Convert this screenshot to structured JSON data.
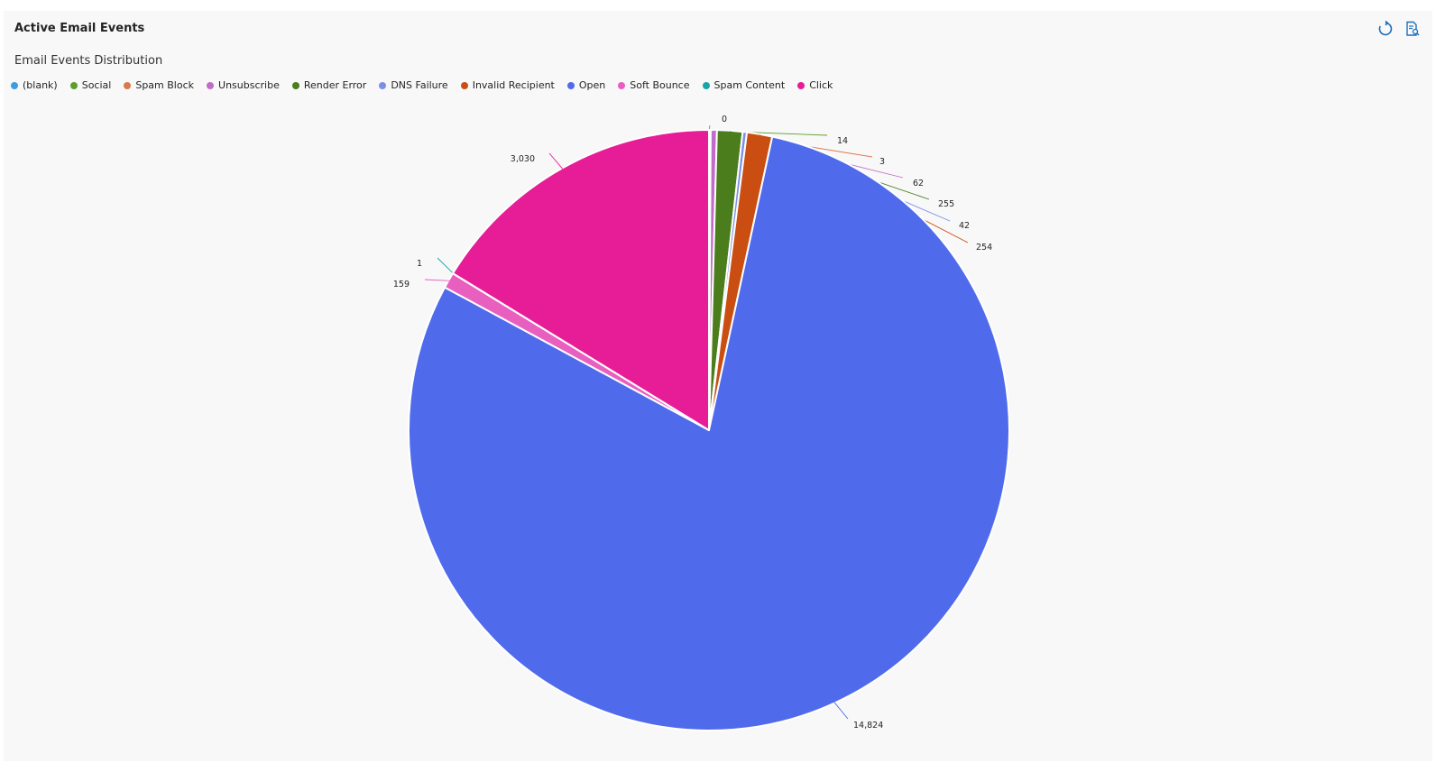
{
  "card": {
    "title": "Active Email Events",
    "colors": {
      "background": "#f8f8f8",
      "icon": "#1c6fb8"
    },
    "actions": [
      {
        "name": "refresh-icon"
      },
      {
        "name": "report-icon"
      }
    ]
  },
  "chart_data": {
    "type": "pie",
    "title": "Email Events Distribution",
    "legend_position": "top-left",
    "series": [
      {
        "name": "(blank)",
        "value": 0,
        "label": "0",
        "color": "#3e9ce0"
      },
      {
        "name": "Social",
        "value": 14,
        "label": "14",
        "color": "#5d9e2c"
      },
      {
        "name": "Spam Block",
        "value": 3,
        "label": "3",
        "color": "#d97a4a"
      },
      {
        "name": "Unsubscribe",
        "value": 62,
        "label": "62",
        "color": "#c06cc8"
      },
      {
        "name": "Render Error",
        "value": 255,
        "label": "255",
        "color": "#4c7d1c"
      },
      {
        "name": "DNS Failure",
        "value": 42,
        "label": "42",
        "color": "#7b8fe8"
      },
      {
        "name": "Invalid Recipient",
        "value": 254,
        "label": "254",
        "color": "#ca4e12"
      },
      {
        "name": "Open",
        "value": 14824,
        "label": "14,824",
        "color": "#4f6bec"
      },
      {
        "name": "Soft Bounce",
        "value": 159,
        "label": "159",
        "color": "#e85fbf"
      },
      {
        "name": "Spam Content",
        "value": 1,
        "label": "1",
        "color": "#17a6a6"
      },
      {
        "name": "Click",
        "value": 3030,
        "label": "3,030",
        "color": "#e61d96"
      }
    ]
  }
}
